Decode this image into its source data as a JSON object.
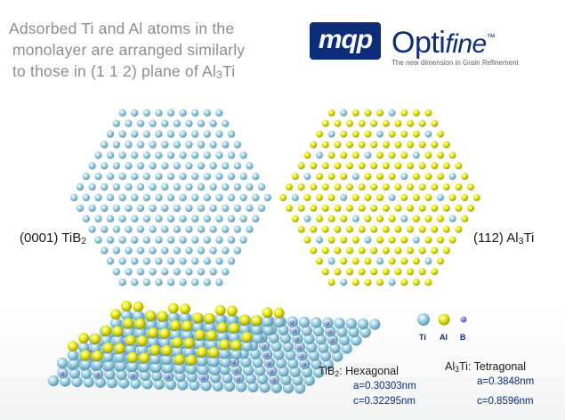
{
  "heading": {
    "line1": "Adsorbed Ti and Al atoms in the",
    "line2": "monolayer are  arranged similarly",
    "line3_prefix": "to those in (1 1 2) plane of Al",
    "line3_sub": "3",
    "line3_suffix": "Ti"
  },
  "logo": {
    "mark": "mqp",
    "name_main": "Opti",
    "name_italic": "fine",
    "name_mark": "™",
    "tagline": "The new dimension in Grain Refinement"
  },
  "planes": {
    "tib2": {
      "prefix": "(0001) TiB",
      "sub": "2"
    },
    "al3ti": {
      "prefix": "(112) Al",
      "sub": "3",
      "suffix": "Ti"
    }
  },
  "legend": {
    "ti": "Ti",
    "al": "Al",
    "b": "B"
  },
  "properties": {
    "tib2": {
      "name_prefix": "TiB",
      "name_sub": "2",
      "name_suffix": ": Hexagonal",
      "a": "a=0.30303nm",
      "c": "c=0.32295nm"
    },
    "al3ti": {
      "name_prefix": "Al",
      "name_sub": "3",
      "name_suffix": "Ti: Tetragonal",
      "a": "a=0.3848nm",
      "c": "c=0.8596nm"
    }
  },
  "colors": {
    "ti": "#8fc8df",
    "al": "#e3e400",
    "b": "#7a56c2",
    "brand": "#0d2c7a"
  }
}
